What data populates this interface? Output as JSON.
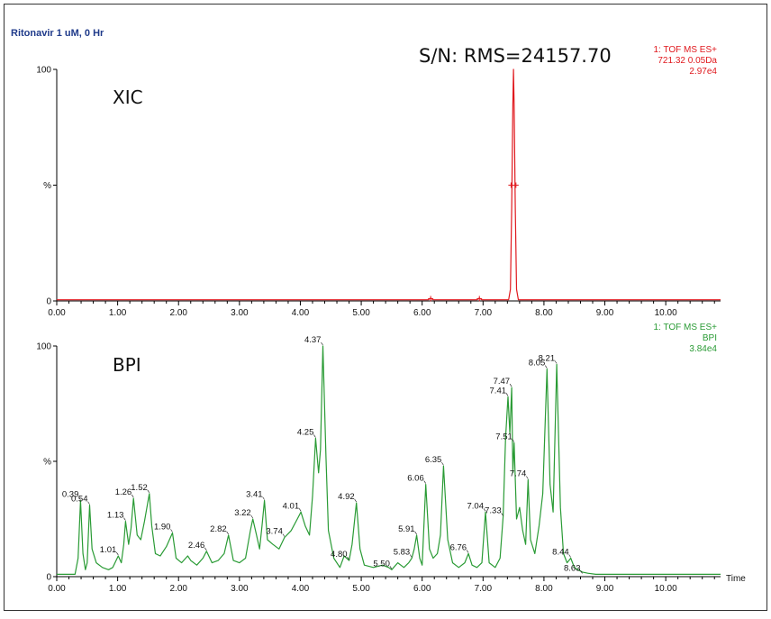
{
  "title": "Ritonavir 1 uM, 0 Hr",
  "colors": {
    "xic": "#e0191e",
    "bpi": "#2a9b35",
    "title": "#1f3a8a",
    "axis": "#000000"
  },
  "panels": [
    {
      "id": "xic",
      "label": "XIC",
      "sn_text": "S/N: RMS=24157.70",
      "info": [
        "1: TOF MS ES+",
        "721.32 0.05Da",
        "2.97e4"
      ]
    },
    {
      "id": "bpi",
      "label": "BPI",
      "info": [
        "1: TOF MS ES+",
        "BPI",
        "3.84e4"
      ],
      "x_axis_label": "Time"
    }
  ],
  "chart_data": [
    {
      "type": "line",
      "panel": "xic",
      "xlim": [
        0,
        10.9
      ],
      "ylim": [
        0,
        100
      ],
      "x_ticks": [
        "0.00",
        "1.00",
        "2.00",
        "3.00",
        "4.00",
        "5.00",
        "6.00",
        "7.00",
        "8.00",
        "9.00",
        "10.00"
      ],
      "y_ticks": [
        "0",
        "%",
        "100"
      ],
      "series": [
        {
          "x": [
            0.0,
            6.1,
            6.14,
            6.18,
            6.9,
            6.94,
            6.98,
            7.42,
            7.45,
            7.47,
            7.49,
            7.5,
            7.51,
            7.53,
            7.55,
            7.58,
            10.9
          ],
          "y": [
            0.5,
            0.5,
            1.2,
            0.5,
            0.5,
            1.2,
            0.5,
            0.5,
            5,
            40,
            85,
            100,
            85,
            40,
            5,
            0.5,
            0.5
          ]
        }
      ],
      "markers": [
        {
          "x": 6.14,
          "y": 1
        },
        {
          "x": 6.94,
          "y": 1
        },
        {
          "x": 7.46,
          "y": 50
        },
        {
          "x": 7.54,
          "y": 50
        }
      ]
    },
    {
      "type": "line",
      "panel": "bpi",
      "xlim": [
        0,
        10.9
      ],
      "ylim": [
        0,
        100
      ],
      "x_ticks": [
        "0.00",
        "1.00",
        "2.00",
        "3.00",
        "4.00",
        "5.00",
        "6.00",
        "7.00",
        "8.00",
        "9.00",
        "10.00"
      ],
      "y_ticks": [
        "0",
        "%",
        "100"
      ],
      "series": [
        {
          "x": [
            0.0,
            0.3,
            0.35,
            0.39,
            0.43,
            0.47,
            0.5,
            0.54,
            0.58,
            0.65,
            0.75,
            0.85,
            0.92,
            1.01,
            1.06,
            1.1,
            1.13,
            1.18,
            1.22,
            1.26,
            1.32,
            1.38,
            1.44,
            1.48,
            1.52,
            1.56,
            1.62,
            1.7,
            1.8,
            1.9,
            1.96,
            2.05,
            2.15,
            2.2,
            2.3,
            2.4,
            2.46,
            2.55,
            2.65,
            2.75,
            2.82,
            2.9,
            3.0,
            3.1,
            3.18,
            3.22,
            3.28,
            3.33,
            3.37,
            3.41,
            3.46,
            3.55,
            3.65,
            3.74,
            3.85,
            3.95,
            4.01,
            4.08,
            4.15,
            4.2,
            4.25,
            4.3,
            4.33,
            4.37,
            4.42,
            4.46,
            4.55,
            4.65,
            4.72,
            4.8,
            4.85,
            4.92,
            4.98,
            5.05,
            5.2,
            5.35,
            5.45,
            5.5,
            5.6,
            5.7,
            5.78,
            5.83,
            5.87,
            5.91,
            5.96,
            6.0,
            6.06,
            6.12,
            6.18,
            6.25,
            6.3,
            6.35,
            6.42,
            6.5,
            6.6,
            6.7,
            6.76,
            6.82,
            6.9,
            6.98,
            7.04,
            7.1,
            7.2,
            7.28,
            7.33,
            7.37,
            7.41,
            7.44,
            7.47,
            7.49,
            7.51,
            7.55,
            7.6,
            7.65,
            7.7,
            7.74,
            7.78,
            7.85,
            7.92,
            7.98,
            8.05,
            8.1,
            8.15,
            8.21,
            8.27,
            8.32,
            8.38,
            8.44,
            8.5,
            8.56,
            8.63,
            8.72,
            8.85,
            9.0,
            10.9
          ],
          "y": [
            1,
            1,
            8,
            33,
            10,
            3,
            6,
            31,
            12,
            6,
            4,
            3,
            4,
            9,
            6,
            14,
            24,
            14,
            21,
            34,
            18,
            16,
            24,
            30,
            36,
            22,
            10,
            9,
            13,
            19,
            8,
            6,
            9,
            7,
            5,
            8,
            11,
            6,
            7,
            10,
            18,
            7,
            6,
            8,
            20,
            25,
            18,
            12,
            22,
            33,
            16,
            14,
            12,
            17,
            20,
            25,
            28,
            22,
            18,
            35,
            60,
            45,
            55,
            100,
            52,
            20,
            8,
            4,
            9,
            7,
            14,
            32,
            12,
            5,
            4,
            5,
            4,
            3,
            6,
            4,
            6,
            8,
            12,
            18,
            8,
            5,
            40,
            12,
            8,
            10,
            18,
            48,
            16,
            6,
            4,
            6,
            10,
            5,
            4,
            6,
            28,
            6,
            4,
            8,
            26,
            60,
            78,
            62,
            82,
            45,
            58,
            25,
            30,
            20,
            14,
            42,
            16,
            10,
            22,
            36,
            90,
            40,
            28,
            92,
            30,
            10,
            6,
            8,
            4,
            3,
            2,
            1.5,
            1,
            1,
            1
          ]
        }
      ],
      "peak_labels": [
        {
          "label": "0.39",
          "x": 0.39,
          "y": 33
        },
        {
          "label": "0.54",
          "x": 0.54,
          "y": 31
        },
        {
          "label": "1.01",
          "x": 1.01,
          "y": 9
        },
        {
          "label": "1.13",
          "x": 1.13,
          "y": 24
        },
        {
          "label": "1.26",
          "x": 1.26,
          "y": 34
        },
        {
          "label": "1.52",
          "x": 1.52,
          "y": 36
        },
        {
          "label": "1.90",
          "x": 1.9,
          "y": 19
        },
        {
          "label": "2.46",
          "x": 2.46,
          "y": 11
        },
        {
          "label": "2.82",
          "x": 2.82,
          "y": 18
        },
        {
          "label": "3.22",
          "x": 3.22,
          "y": 25
        },
        {
          "label": "3.41",
          "x": 3.41,
          "y": 33
        },
        {
          "label": "3.74",
          "x": 3.74,
          "y": 17
        },
        {
          "label": "4.01",
          "x": 4.01,
          "y": 28
        },
        {
          "label": "4.25",
          "x": 4.25,
          "y": 60
        },
        {
          "label": "4.37",
          "x": 4.37,
          "y": 100
        },
        {
          "label": "4.80",
          "x": 4.8,
          "y": 7
        },
        {
          "label": "4.92",
          "x": 4.92,
          "y": 32
        },
        {
          "label": "5.50",
          "x": 5.5,
          "y": 3
        },
        {
          "label": "5.83",
          "x": 5.83,
          "y": 8
        },
        {
          "label": "5.91",
          "x": 5.91,
          "y": 18
        },
        {
          "label": "6.06",
          "x": 6.06,
          "y": 40
        },
        {
          "label": "6.35",
          "x": 6.35,
          "y": 48
        },
        {
          "label": "6.76",
          "x": 6.76,
          "y": 10
        },
        {
          "label": "7.04",
          "x": 7.04,
          "y": 28
        },
        {
          "label": "7.33",
          "x": 7.33,
          "y": 26
        },
        {
          "label": "7.41",
          "x": 7.41,
          "y": 78
        },
        {
          "label": "7.47",
          "x": 7.47,
          "y": 82
        },
        {
          "label": "7.51",
          "x": 7.51,
          "y": 58
        },
        {
          "label": "7.74",
          "x": 7.74,
          "y": 42
        },
        {
          "label": "8.05",
          "x": 8.05,
          "y": 90
        },
        {
          "label": "8.21",
          "x": 8.21,
          "y": 92
        },
        {
          "label": "8.44",
          "x": 8.44,
          "y": 8
        },
        {
          "label": "8.63",
          "x": 8.63,
          "y": 1
        }
      ]
    }
  ]
}
